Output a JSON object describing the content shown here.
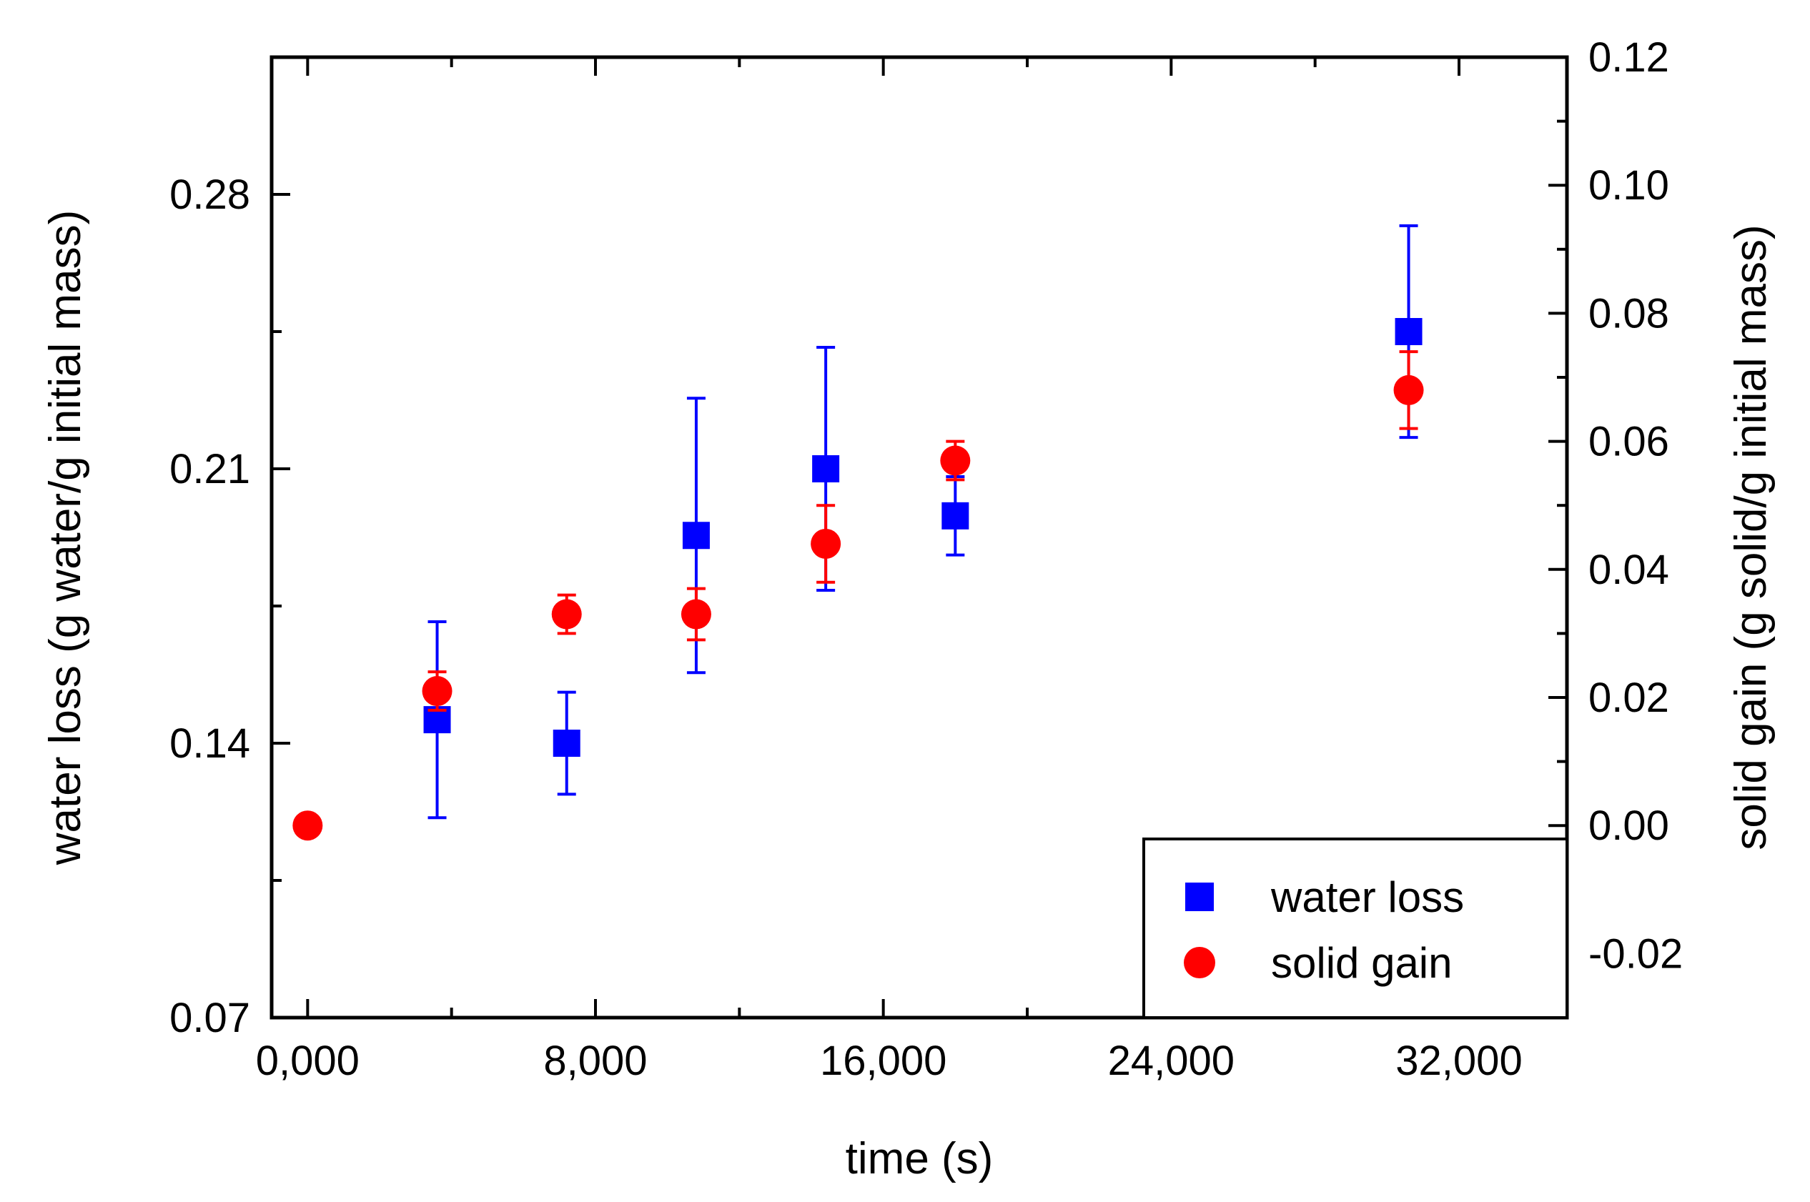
{
  "chart_data": {
    "type": "scatter",
    "xlabel": "time (s)",
    "ylabel": "water loss (g water/g initial mass)",
    "y2label": "solid gain (g solid/g initial mass)",
    "xlim": [
      -1000,
      35000
    ],
    "ylim": [
      0.07,
      0.315
    ],
    "y2lim": [
      -0.03,
      0.12
    ],
    "x_ticks": [
      0,
      8000,
      16000,
      24000,
      32000
    ],
    "x_tick_labels": [
      "0,000",
      "8,000",
      "16,000",
      "24,000",
      "32,000"
    ],
    "y_ticks": [
      0.07,
      0.14,
      0.21,
      0.28
    ],
    "y_tick_labels": [
      "0.07",
      "0.14",
      "0.21",
      "0.28"
    ],
    "y2_ticks": [
      -0.02,
      0.0,
      0.02,
      0.04,
      0.06,
      0.08,
      0.1,
      0.12
    ],
    "y2_tick_labels": [
      "-0.02",
      "0.00",
      "0.02",
      "0.04",
      "0.06",
      "0.08",
      "0.10",
      "0.12"
    ],
    "legend_position": "bottom-right",
    "series": [
      {
        "name": "water loss",
        "axis": "left",
        "marker": "square",
        "color": "#0000ff",
        "x": [
          3600,
          7200,
          10800,
          14400,
          18000,
          30600
        ],
        "y": [
          0.146,
          0.14,
          0.193,
          0.21,
          0.198,
          0.245
        ],
        "err": [
          0.025,
          0.013,
          0.035,
          0.031,
          0.01,
          0.027
        ]
      },
      {
        "name": "solid gain",
        "axis": "right",
        "marker": "circle",
        "color": "#ff0000",
        "x": [
          0,
          3600,
          7200,
          10800,
          14400,
          18000,
          30600
        ],
        "y": [
          0.0,
          0.021,
          0.033,
          0.033,
          0.044,
          0.057,
          0.068
        ],
        "err": [
          0.0,
          0.003,
          0.003,
          0.004,
          0.006,
          0.003,
          0.006
        ]
      }
    ]
  }
}
